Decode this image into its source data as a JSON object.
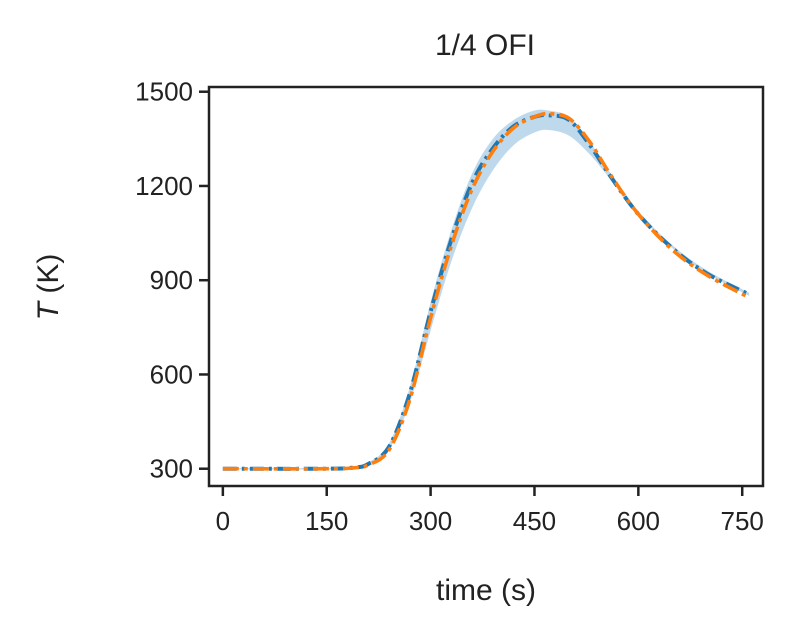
{
  "chart_data": {
    "type": "line",
    "title": "1/4 OFI",
    "xlabel": "time (s)",
    "ylabel_var": "T",
    "ylabel_unit": " (K)",
    "xlim": [
      -20,
      780
    ],
    "ylim": [
      245,
      1515
    ],
    "x_ticks": [
      0,
      150,
      300,
      450,
      600,
      750
    ],
    "y_ticks": [
      300,
      600,
      900,
      1200,
      1500
    ],
    "grid": false,
    "colors": {
      "series_1": "#1f77b4",
      "series_2": "#ff7f0e",
      "band": "#a9cce6",
      "axes": "#222222"
    },
    "band": {
      "x": [
        0,
        150,
        190,
        210,
        240,
        270,
        300,
        330,
        360,
        390,
        420,
        450,
        470,
        500,
        530,
        560,
        600,
        650,
        700,
        760
      ],
      "lower": [
        298,
        298,
        302,
        312,
        360,
        510,
        740,
        960,
        1130,
        1250,
        1330,
        1370,
        1378,
        1360,
        1300,
        1220,
        1110,
        1000,
        920,
        850
      ],
      "upper": [
        302,
        302,
        306,
        320,
        380,
        560,
        830,
        1060,
        1240,
        1350,
        1410,
        1440,
        1440,
        1420,
        1340,
        1240,
        1120,
        1010,
        930,
        860
      ]
    },
    "series": [
      {
        "style": "dashdot",
        "x": [
          0,
          150,
          190,
          210,
          240,
          270,
          300,
          330,
          360,
          390,
          420,
          450,
          470,
          500,
          530,
          560,
          600,
          650,
          700,
          760
        ],
        "y": [
          300,
          300,
          304,
          315,
          370,
          540,
          800,
          1030,
          1210,
          1320,
          1390,
          1420,
          1425,
          1410,
          1330,
          1230,
          1110,
          1000,
          920,
          855
        ]
      },
      {
        "style": "dashdot",
        "x": [
          0,
          150,
          190,
          210,
          240,
          270,
          300,
          330,
          360,
          390,
          420,
          450,
          470,
          500,
          530,
          560,
          600,
          650,
          700,
          760
        ],
        "y": [
          300,
          300,
          303,
          312,
          360,
          520,
          780,
          1010,
          1190,
          1310,
          1385,
          1420,
          1430,
          1415,
          1340,
          1235,
          1110,
          995,
          915,
          845
        ]
      }
    ]
  }
}
